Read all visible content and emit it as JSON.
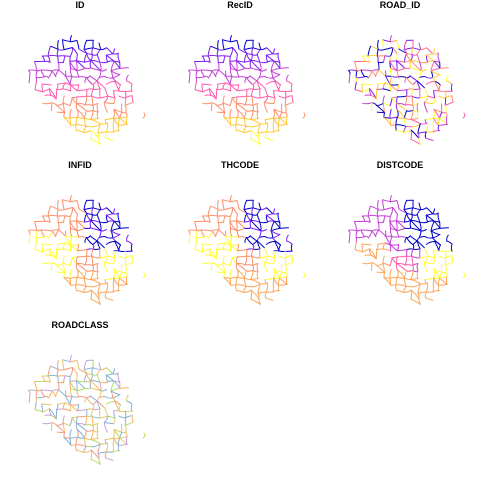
{
  "panels": [
    {
      "title": "ID",
      "palette": [
        "#0000cc",
        "#7a1cf0",
        "#c43fd8",
        "#ff5cab",
        "#ff8f6b",
        "#ffc93a",
        "#ffff33"
      ]
    },
    {
      "title": "RecID",
      "palette": [
        "#0000cc",
        "#7a1cf0",
        "#c43fd8",
        "#ff5cab",
        "#ff8f6b",
        "#ffc93a",
        "#ffff33"
      ]
    },
    {
      "title": "ROAD_ID",
      "palette": [
        "#0000cc",
        "#7a1cf0",
        "#c43fd8",
        "#ff5cab",
        "#ff8f6b",
        "#ffc93a",
        "#ffff33"
      ]
    },
    {
      "title": "INFID",
      "palette": [
        "#0000cc",
        "#7a1cf0",
        "#ff8f6b",
        "#ffa65a",
        "#ffff33"
      ]
    },
    {
      "title": "THCODE",
      "palette": [
        "#0000cc",
        "#7a1cf0",
        "#ff8f6b",
        "#ffa65a",
        "#ffff33"
      ]
    },
    {
      "title": "DISTCODE",
      "palette": [
        "#0000cc",
        "#c43fd8",
        "#ff5cab",
        "#ffa65a",
        "#ffff33"
      ]
    },
    {
      "title": "ROADCLASS",
      "palette": [
        "#f59b82",
        "#8fb6d9",
        "#c9a0dc",
        "#b3de69",
        "#fdb462",
        "#80b1d3",
        "#e6c96b"
      ]
    }
  ]
}
